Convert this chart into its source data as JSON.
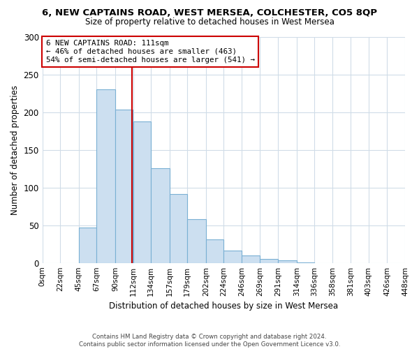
{
  "title": "6, NEW CAPTAINS ROAD, WEST MERSEA, COLCHESTER, CO5 8QP",
  "subtitle": "Size of property relative to detached houses in West Mersea",
  "xlabel": "Distribution of detached houses by size in West Mersea",
  "ylabel": "Number of detached properties",
  "bar_color": "#ccdff0",
  "bar_edge_color": "#7ab0d4",
  "reference_line_x": 111,
  "reference_line_color": "#cc0000",
  "bin_edges": [
    0,
    22,
    45,
    67,
    90,
    112,
    134,
    157,
    179,
    202,
    224,
    246,
    269,
    291,
    314,
    336,
    358,
    381,
    403,
    426,
    448
  ],
  "bin_labels": [
    "0sqm",
    "22sqm",
    "45sqm",
    "67sqm",
    "90sqm",
    "112sqm",
    "134sqm",
    "157sqm",
    "179sqm",
    "202sqm",
    "224sqm",
    "246sqm",
    "269sqm",
    "291sqm",
    "314sqm",
    "336sqm",
    "358sqm",
    "381sqm",
    "403sqm",
    "426sqm",
    "448sqm"
  ],
  "counts": [
    0,
    0,
    47,
    230,
    203,
    188,
    126,
    91,
    58,
    31,
    16,
    10,
    5,
    3,
    1,
    0,
    0,
    0,
    0,
    0
  ],
  "ylim": [
    0,
    300
  ],
  "annotation_title": "6 NEW CAPTAINS ROAD: 111sqm",
  "annotation_line1": "← 46% of detached houses are smaller (463)",
  "annotation_line2": "54% of semi-detached houses are larger (541) →",
  "annotation_box_color": "#ffffff",
  "annotation_box_edge_color": "#cc0000",
  "footer": "Contains HM Land Registry data © Crown copyright and database right 2024.\nContains public sector information licensed under the Open Government Licence v3.0.",
  "bg_color": "#ffffff",
  "grid_color": "#d0dce8",
  "yticks": [
    0,
    50,
    100,
    150,
    200,
    250,
    300
  ]
}
